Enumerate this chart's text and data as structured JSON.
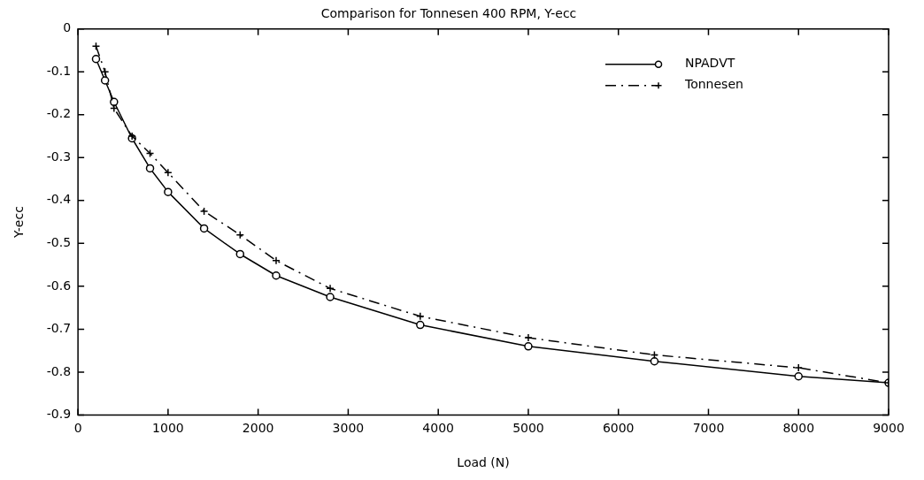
{
  "chart_data": {
    "type": "line",
    "title": "Comparison for Tonnesen 400 RPM, Y-ecc",
    "xlabel": "Load (N)",
    "ylabel": "Y-ecc",
    "x": [
      200,
      300,
      400,
      600,
      800,
      1000,
      1400,
      1800,
      2200,
      2800,
      3800,
      5000,
      6400,
      8000,
      9000
    ],
    "series": [
      {
        "name": "NPADVT",
        "color": "#000000",
        "marker": "circle",
        "line_style": "solid",
        "values": [
          -0.07,
          -0.12,
          -0.17,
          -0.255,
          -0.325,
          -0.38,
          -0.465,
          -0.525,
          -0.575,
          -0.625,
          -0.69,
          -0.74,
          -0.775,
          -0.81,
          -0.825
        ]
      },
      {
        "name": "Tonnesen",
        "color": "#000000",
        "marker": "cross",
        "line_style": "dashdot",
        "values": [
          -0.04,
          -0.1,
          -0.185,
          -0.25,
          -0.29,
          -0.335,
          -0.425,
          -0.48,
          -0.54,
          -0.605,
          -0.67,
          -0.72,
          -0.76,
          -0.79,
          -0.825
        ]
      }
    ],
    "xlim": [
      0,
      9000
    ],
    "xticks": [
      0,
      1000,
      2000,
      3000,
      4000,
      5000,
      6000,
      7000,
      8000,
      9000
    ],
    "ylim": [
      -0.9,
      0
    ],
    "yticks": [
      -0.9,
      -0.8,
      -0.7,
      -0.6,
      -0.5,
      -0.4,
      -0.3,
      -0.2,
      -0.1,
      0
    ],
    "grid": false,
    "legend": "top right"
  }
}
